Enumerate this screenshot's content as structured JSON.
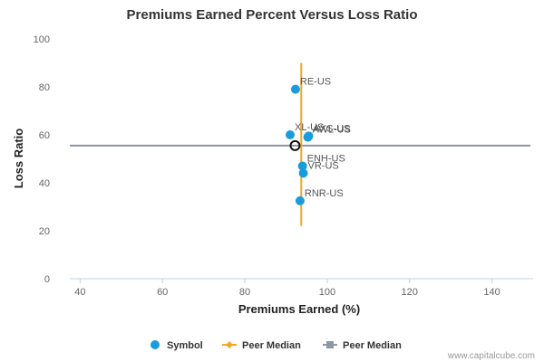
{
  "chart_data": {
    "type": "scatter",
    "title": "Premiums Earned Percent Versus Loss Ratio",
    "xlabel": "Premiums Earned (%)",
    "ylabel": "Loss Ratio",
    "xlim": [
      37.5,
      150
    ],
    "ylim": [
      0,
      100
    ],
    "x_ticks": [
      "40",
      "60",
      "80",
      "100",
      "120",
      "140"
    ],
    "y_ticks": [
      "0",
      "20",
      "40",
      "60",
      "80",
      "100"
    ],
    "grid": false,
    "legend_position": "bottom",
    "colors": {
      "symbol": "#1a9bdb",
      "peer_median_x": "#f5a623",
      "peer_median_y": "#8e95a3"
    },
    "series": [
      {
        "name": "Symbol",
        "points": [
          {
            "label": "RE-US",
            "x": 92.3,
            "y": 79
          },
          {
            "label": "XL-US",
            "x": 91.0,
            "y": 60
          },
          {
            "label": "AXS-US",
            "x": 95.5,
            "y": 59.5
          },
          {
            "label": "AWL-US",
            "x": 95.3,
            "y": 59.0
          },
          {
            "label": "ENH-US",
            "x": 94.0,
            "y": 47
          },
          {
            "label": "VR-US",
            "x": 94.2,
            "y": 44
          },
          {
            "label": "RNR-US",
            "x": 93.4,
            "y": 32.5
          }
        ]
      }
    ],
    "peer_median_x": {
      "name": "Peer Median",
      "x": 93.7,
      "y_range": [
        22,
        90
      ]
    },
    "peer_median_y": {
      "name": "Peer Median",
      "y": 55.5
    },
    "median_marker": {
      "x": 92.2,
      "y": 55.5
    }
  },
  "credit": "www.capitalcube.com"
}
